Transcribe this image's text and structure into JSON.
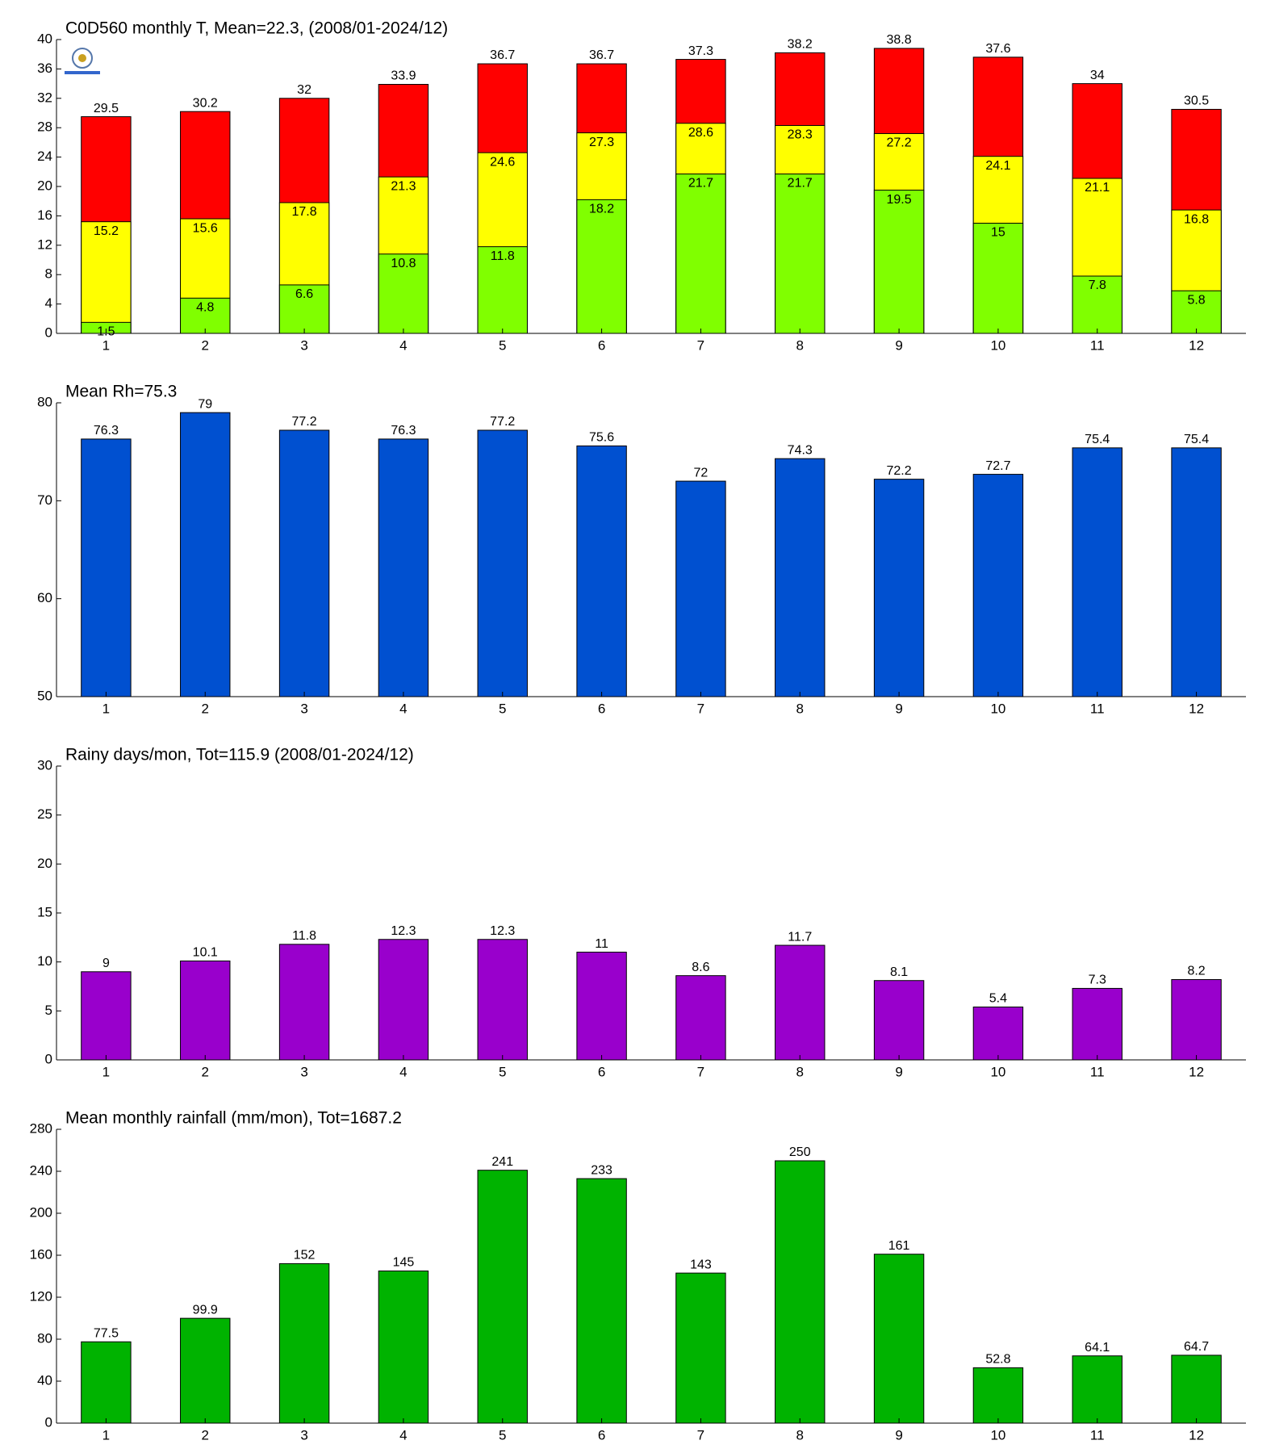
{
  "chart_data": [
    {
      "type": "bar",
      "title": "C0D560 monthly T, Mean=22.3, (2008/01-2024/12)",
      "categories": [
        1,
        2,
        3,
        4,
        5,
        6,
        7,
        8,
        9,
        10,
        11,
        12
      ],
      "series": [
        {
          "color": "#ff0000",
          "values": [
            29.5,
            30.2,
            32,
            33.9,
            36.7,
            36.7,
            37.3,
            38.2,
            38.8,
            37.6,
            34,
            30.5
          ]
        },
        {
          "color": "#ffff00",
          "values": [
            15.2,
            15.6,
            17.8,
            21.3,
            24.6,
            27.3,
            28.6,
            28.3,
            27.2,
            24.1,
            21.1,
            16.8
          ]
        },
        {
          "color": "#80ff00",
          "values": [
            1.5,
            4.8,
            6.6,
            10.8,
            11.8,
            18.2,
            21.7,
            21.7,
            19.5,
            15,
            7.8,
            5.8
          ]
        }
      ],
      "ylim": [
        0,
        40
      ],
      "yticks": [
        0,
        4,
        8,
        12,
        16,
        20,
        24,
        28,
        32,
        36,
        40
      ]
    },
    {
      "type": "bar",
      "title": "Mean Rh=75.3",
      "categories": [
        1,
        2,
        3,
        4,
        5,
        6,
        7,
        8,
        9,
        10,
        11,
        12
      ],
      "series": [
        {
          "color": "#0050d0",
          "values": [
            76.3,
            79,
            77.2,
            76.3,
            77.2,
            75.6,
            72,
            74.3,
            72.2,
            72.7,
            75.4,
            75.4
          ]
        }
      ],
      "ylim": [
        50,
        80
      ],
      "yticks": [
        50,
        60,
        70,
        80
      ]
    },
    {
      "type": "bar",
      "title": "Rainy days/mon, Tot=115.9 (2008/01-2024/12)",
      "categories": [
        1,
        2,
        3,
        4,
        5,
        6,
        7,
        8,
        9,
        10,
        11,
        12
      ],
      "series": [
        {
          "color": "#9900cc",
          "values": [
            9,
            10.1,
            11.8,
            12.3,
            12.3,
            11,
            8.6,
            11.7,
            8.1,
            5.4,
            7.3,
            8.2
          ]
        }
      ],
      "ylim": [
        0,
        30
      ],
      "yticks": [
        0,
        5,
        10,
        15,
        20,
        25,
        30
      ]
    },
    {
      "type": "bar",
      "title": "Mean monthly rainfall (mm/mon), Tot=1687.2",
      "categories": [
        1,
        2,
        3,
        4,
        5,
        6,
        7,
        8,
        9,
        10,
        11,
        12
      ],
      "series": [
        {
          "color": "#00b300",
          "values": [
            77.5,
            99.9,
            152,
            145,
            241,
            233,
            143,
            250,
            161,
            52.8,
            64.1,
            64.7
          ]
        }
      ],
      "ylim": [
        0,
        280
      ],
      "yticks": [
        0,
        40,
        80,
        120,
        160,
        200,
        240,
        280
      ]
    }
  ]
}
